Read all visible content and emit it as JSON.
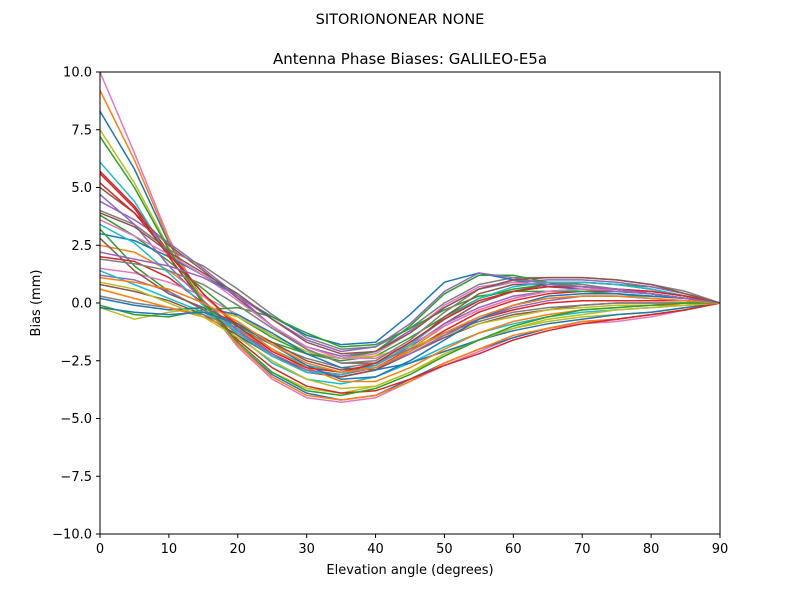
{
  "chart_data": {
    "type": "line",
    "suptitle": "SITORIONONEAR   NONE",
    "title": "Antenna Phase Biases: GALILEO-E5a",
    "xlabel": "Elevation angle (degrees)",
    "ylabel": "Bias (mm)",
    "xlim": [
      0,
      90
    ],
    "ylim": [
      -10,
      10
    ],
    "xticks": [
      "0",
      "10",
      "20",
      "30",
      "40",
      "50",
      "60",
      "70",
      "80",
      "90"
    ],
    "yticks": [
      "10.0",
      "7.5",
      "5.0",
      "2.5",
      "0.0",
      "−2.5",
      "−5.0",
      "−7.5",
      "−10.0"
    ],
    "grid": false,
    "x": [
      0,
      5,
      10,
      15,
      20,
      25,
      30,
      35,
      40,
      45,
      50,
      55,
      60,
      65,
      70,
      75,
      80,
      85,
      90
    ],
    "series": [
      {
        "color": "#e377c2",
        "values": [
          10.0,
          6.5,
          2.8,
          0.0,
          -1.9,
          -3.3,
          -4.1,
          -4.3,
          -4.1,
          -3.4,
          -2.7,
          -2.1,
          -1.5,
          -1.1,
          -0.9,
          -0.8,
          -0.6,
          -0.3,
          0.0
        ]
      },
      {
        "color": "#1f77b4",
        "values": [
          8.3,
          5.8,
          2.6,
          0.1,
          -1.8,
          -3.1,
          -3.9,
          -4.2,
          -4.0,
          -3.3,
          -2.6,
          -2.0,
          -1.5,
          -1.1,
          -0.8,
          -0.7,
          -0.5,
          -0.3,
          0.0
        ]
      },
      {
        "color": "#ff7f0e",
        "values": [
          9.2,
          6.2,
          2.7,
          0.0,
          -1.8,
          -3.2,
          -4.0,
          -4.2,
          -4.0,
          -3.4,
          -2.6,
          -2.0,
          -1.4,
          -1.1,
          -0.8,
          -0.7,
          -0.5,
          -0.3,
          0.0
        ]
      },
      {
        "color": "#bcbd22",
        "values": [
          7.5,
          5.2,
          2.4,
          0.1,
          -1.7,
          -3.0,
          -3.7,
          -3.9,
          -3.6,
          -3.0,
          -2.2,
          -1.6,
          -1.1,
          -0.8,
          -0.6,
          -0.5,
          -0.4,
          -0.2,
          0.0
        ]
      },
      {
        "color": "#d62728",
        "values": [
          5.7,
          4.2,
          2.2,
          0.4,
          -1.1,
          -2.2,
          -3.0,
          -3.1,
          -2.8,
          -2.0,
          -1.3,
          -0.7,
          -0.3,
          0.0,
          0.1,
          0.1,
          0.1,
          0.1,
          0.0
        ]
      },
      {
        "color": "#17becf",
        "values": [
          6.1,
          4.4,
          2.0,
          0.0,
          -1.4,
          -2.6,
          -3.3,
          -3.5,
          -3.2,
          -2.6,
          -1.9,
          -1.3,
          -0.9,
          -0.6,
          -0.4,
          -0.3,
          -0.2,
          -0.1,
          0.0
        ]
      },
      {
        "color": "#2ca02c",
        "values": [
          3.8,
          2.9,
          1.8,
          0.6,
          -0.6,
          -1.5,
          -2.2,
          -2.5,
          -2.3,
          -1.5,
          -0.6,
          0.2,
          0.6,
          0.8,
          0.9,
          0.8,
          0.7,
          0.4,
          0.0
        ]
      },
      {
        "color": "#8c564b",
        "values": [
          5.0,
          3.9,
          2.5,
          1.4,
          0.2,
          -1.0,
          -2.0,
          -2.6,
          -2.6,
          -1.9,
          -0.9,
          0.0,
          0.5,
          0.8,
          0.9,
          0.8,
          0.6,
          0.3,
          0.0
        ]
      },
      {
        "color": "#9467bd",
        "values": [
          4.4,
          3.6,
          2.6,
          1.5,
          0.3,
          -1.0,
          -1.9,
          -2.3,
          -2.1,
          -1.2,
          -0.2,
          0.6,
          0.9,
          1.0,
          1.0,
          0.9,
          0.7,
          0.4,
          0.0
        ]
      },
      {
        "color": "#7f7f7f",
        "values": [
          4.0,
          3.4,
          2.3,
          1.6,
          0.6,
          -0.5,
          -1.5,
          -2.0,
          -1.9,
          -1.1,
          0.0,
          0.8,
          1.1,
          1.1,
          1.1,
          1.0,
          0.8,
          0.5,
          0.0
        ]
      },
      {
        "color": "#1f77b4",
        "values": [
          3.0,
          2.7,
          2.0,
          1.2,
          0.3,
          -0.6,
          -1.4,
          -1.8,
          -1.7,
          -0.5,
          0.9,
          1.3,
          1.0,
          0.7,
          0.6,
          0.5,
          0.4,
          0.2,
          0.0
        ]
      },
      {
        "color": "#ff7f0e",
        "values": [
          2.5,
          2.2,
          1.4,
          0.3,
          -0.9,
          -2.0,
          -2.9,
          -3.2,
          -2.9,
          -2.0,
          -1.0,
          -0.3,
          0.2,
          0.5,
          0.6,
          0.6,
          0.5,
          0.3,
          0.0
        ]
      },
      {
        "color": "#2ca02c",
        "values": [
          3.2,
          1.6,
          0.5,
          -0.3,
          -1.0,
          -1.7,
          -2.2,
          -2.4,
          -2.1,
          -1.0,
          0.4,
          1.2,
          1.2,
          0.9,
          0.7,
          0.6,
          0.4,
          0.2,
          0.0
        ]
      },
      {
        "color": "#d62728",
        "values": [
          2.0,
          1.8,
          1.1,
          0.0,
          -1.2,
          -2.3,
          -3.0,
          -3.2,
          -2.9,
          -2.1,
          -1.2,
          -0.4,
          0.1,
          0.4,
          0.5,
          0.5,
          0.4,
          0.2,
          0.0
        ]
      },
      {
        "color": "#9467bd",
        "values": [
          1.2,
          1.0,
          0.5,
          -0.3,
          -1.3,
          -2.2,
          -2.9,
          -3.1,
          -2.7,
          -1.9,
          -0.9,
          -0.2,
          0.3,
          0.5,
          0.6,
          0.5,
          0.4,
          0.2,
          0.0
        ]
      },
      {
        "color": "#8c564b",
        "values": [
          0.8,
          0.5,
          0.1,
          -0.5,
          -1.4,
          -2.3,
          -3.0,
          -3.2,
          -2.9,
          -2.2,
          -1.5,
          -0.9,
          -0.5,
          -0.3,
          -0.1,
          0.0,
          0.0,
          0.0,
          0.0
        ]
      },
      {
        "color": "#e377c2",
        "values": [
          1.5,
          1.3,
          0.9,
          0.3,
          -0.5,
          -1.4,
          -2.1,
          -2.4,
          -2.2,
          -1.3,
          -0.1,
          0.7,
          0.9,
          0.8,
          0.7,
          0.6,
          0.5,
          0.3,
          0.0
        ]
      },
      {
        "color": "#7f7f7f",
        "values": [
          0.3,
          0.0,
          -0.2,
          -0.5,
          -1.1,
          -1.8,
          -2.4,
          -2.8,
          -2.6,
          -2.0,
          -1.3,
          -0.8,
          -0.4,
          -0.2,
          -0.1,
          0.0,
          0.0,
          0.0,
          0.0
        ]
      },
      {
        "color": "#bcbd22",
        "values": [
          -0.2,
          -0.7,
          -0.4,
          -0.2,
          -0.6,
          -1.4,
          -2.1,
          -2.4,
          -2.3,
          -1.9,
          -1.4,
          -0.9,
          -0.6,
          -0.3,
          -0.2,
          -0.1,
          -0.1,
          0.0,
          0.0
        ]
      },
      {
        "color": "#17becf",
        "values": [
          1.4,
          0.8,
          0.2,
          -0.4,
          -1.1,
          -2.0,
          -2.7,
          -3.0,
          -2.8,
          -2.1,
          -1.3,
          -0.6,
          -0.1,
          0.2,
          0.3,
          0.3,
          0.3,
          0.2,
          0.0
        ]
      },
      {
        "color": "#1f77b4",
        "values": [
          0.2,
          -0.1,
          -0.3,
          -0.2,
          -0.5,
          -1.3,
          -2.2,
          -2.8,
          -2.9,
          -2.6,
          -2.1,
          -1.6,
          -1.2,
          -0.9,
          -0.7,
          -0.5,
          -0.4,
          -0.2,
          0.0
        ]
      },
      {
        "color": "#ff7f0e",
        "values": [
          0.6,
          0.2,
          -0.2,
          -0.6,
          -1.2,
          -2.0,
          -2.8,
          -3.4,
          -3.4,
          -2.8,
          -2.0,
          -1.3,
          -0.8,
          -0.5,
          -0.3,
          -0.2,
          -0.1,
          -0.1,
          0.0
        ]
      },
      {
        "color": "#2ca02c",
        "values": [
          -0.1,
          -0.5,
          -0.6,
          -0.3,
          -0.2,
          -0.6,
          -1.3,
          -1.9,
          -1.8,
          -1.1,
          -0.3,
          0.3,
          0.5,
          0.5,
          0.5,
          0.4,
          0.3,
          0.2,
          0.0
        ]
      },
      {
        "color": "#d62728",
        "values": [
          5.6,
          4.1,
          2.0,
          0.0,
          -1.6,
          -2.8,
          -3.6,
          -3.9,
          -3.8,
          -3.3,
          -2.7,
          -2.2,
          -1.6,
          -1.2,
          -0.9,
          -0.7,
          -0.5,
          -0.3,
          0.0
        ]
      },
      {
        "color": "#9467bd",
        "values": [
          4.7,
          3.4,
          1.6,
          0.1,
          -1.2,
          -2.2,
          -2.9,
          -3.1,
          -2.8,
          -2.2,
          -1.4,
          -0.7,
          -0.2,
          0.1,
          0.3,
          0.3,
          0.2,
          0.1,
          0.0
        ]
      },
      {
        "color": "#8c564b",
        "values": [
          2.8,
          1.4,
          0.4,
          -0.2,
          -0.9,
          -1.7,
          -2.5,
          -2.9,
          -2.7,
          -1.8,
          -0.6,
          0.4,
          0.8,
          0.8,
          0.7,
          0.6,
          0.4,
          0.2,
          0.0
        ]
      },
      {
        "color": "#e377c2",
        "values": [
          3.6,
          2.9,
          2.1,
          1.2,
          0.1,
          -1.0,
          -1.9,
          -2.4,
          -2.4,
          -1.8,
          -1.0,
          -0.3,
          0.2,
          0.5,
          0.6,
          0.6,
          0.5,
          0.3,
          0.0
        ]
      },
      {
        "color": "#7f7f7f",
        "values": [
          1.9,
          1.7,
          1.4,
          0.8,
          -0.1,
          -1.1,
          -2.0,
          -2.6,
          -2.5,
          -1.6,
          -0.4,
          0.6,
          1.0,
          0.9,
          0.8,
          0.6,
          0.4,
          0.2,
          0.0
        ]
      },
      {
        "color": "#bcbd22",
        "values": [
          0.9,
          0.6,
          0.0,
          -0.6,
          -1.5,
          -2.5,
          -3.3,
          -3.7,
          -3.6,
          -3.0,
          -2.3,
          -1.6,
          -1.1,
          -0.7,
          -0.5,
          -0.3,
          -0.2,
          -0.1,
          0.0
        ]
      },
      {
        "color": "#17becf",
        "values": [
          3.4,
          2.6,
          1.3,
          -0.1,
          -1.3,
          -2.3,
          -3.0,
          -3.1,
          -2.7,
          -1.8,
          -0.7,
          0.2,
          0.7,
          0.9,
          0.9,
          0.8,
          0.6,
          0.3,
          0.0
        ]
      },
      {
        "color": "#1f77b4",
        "values": [
          -0.2,
          -0.4,
          -0.5,
          -0.4,
          -0.9,
          -1.8,
          -2.7,
          -3.3,
          -3.2,
          -2.5,
          -1.6,
          -0.7,
          -0.1,
          0.3,
          0.4,
          0.4,
          0.3,
          0.2,
          0.0
        ]
      },
      {
        "color": "#2ca02c",
        "values": [
          7.2,
          5.0,
          2.3,
          0.0,
          -1.7,
          -3.0,
          -3.8,
          -4.0,
          -3.7,
          -3.1,
          -2.3,
          -1.6,
          -1.0,
          -0.6,
          -0.3,
          -0.2,
          -0.1,
          0.0,
          0.0
        ]
      },
      {
        "color": "#d62728",
        "values": [
          5.2,
          3.9,
          2.1,
          0.4,
          -1.0,
          -2.1,
          -2.8,
          -3.0,
          -2.6,
          -1.7,
          -0.7,
          0.1,
          0.5,
          0.7,
          0.7,
          0.6,
          0.5,
          0.3,
          0.0
        ]
      },
      {
        "color": "#ff7f0e",
        "values": [
          1.1,
          0.9,
          0.6,
          0.0,
          -0.8,
          -1.8,
          -2.6,
          -3.0,
          -2.8,
          -2.1,
          -1.3,
          -0.6,
          -0.1,
          0.2,
          0.3,
          0.3,
          0.2,
          0.1,
          0.0
        ]
      },
      {
        "color": "#9467bd",
        "values": [
          2.2,
          1.9,
          1.6,
          1.1,
          0.3,
          -0.7,
          -1.6,
          -2.1,
          -1.9,
          -0.9,
          0.5,
          1.3,
          1.1,
          0.8,
          0.7,
          0.6,
          0.4,
          0.2,
          0.0
        ]
      },
      {
        "color": "#8c564b",
        "values": [
          3.9,
          3.3,
          2.2,
          1.3,
          0.4,
          -0.7,
          -1.7,
          -2.2,
          -2.1,
          -1.3,
          -0.2,
          0.6,
          1.0,
          1.1,
          1.1,
          1.0,
          0.8,
          0.4,
          0.0
        ]
      }
    ]
  }
}
